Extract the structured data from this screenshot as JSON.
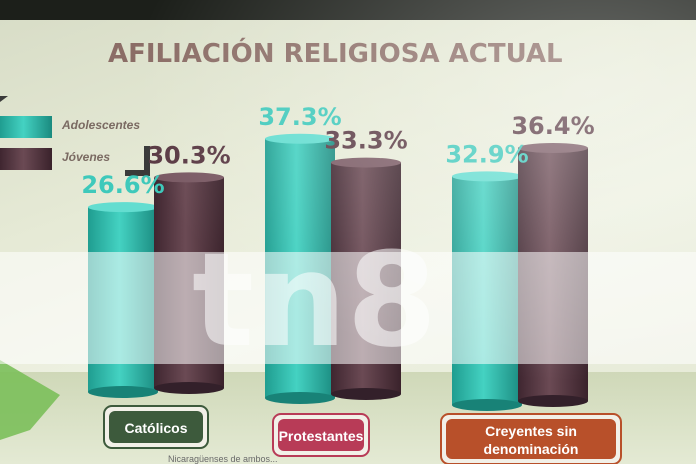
{
  "chart_data": {
    "type": "bar",
    "title": "AFILIACIÓN RELIGIOSA ACTUAL",
    "categories": [
      "Católicos",
      "Protestantes",
      "Creyentes sin denominación"
    ],
    "category_lines": [
      [
        "Católicos"
      ],
      [
        "Protestantes"
      ],
      [
        "Creyentes sin",
        "denominación"
      ]
    ],
    "series": [
      {
        "name": "Adolescentes",
        "values": [
          26.6,
          37.3,
          32.9
        ],
        "labels": [
          "26.6%",
          "37.3%",
          "32.9%"
        ],
        "color": "#2fc0b0"
      },
      {
        "name": "Jóvenes",
        "values": [
          30.3,
          33.3,
          36.4
        ],
        "labels": [
          "30.3%",
          "33.3%",
          "36.4%"
        ],
        "color": "#5a3a44"
      }
    ],
    "category_colors": [
      "#3d5a3c",
      "#b83b57",
      "#b8502a"
    ],
    "ylim": [
      0,
      45
    ],
    "grid": false,
    "legend": "top-left"
  },
  "watermark": "tn8",
  "footnote": "Nicaragüenses de ambos..."
}
